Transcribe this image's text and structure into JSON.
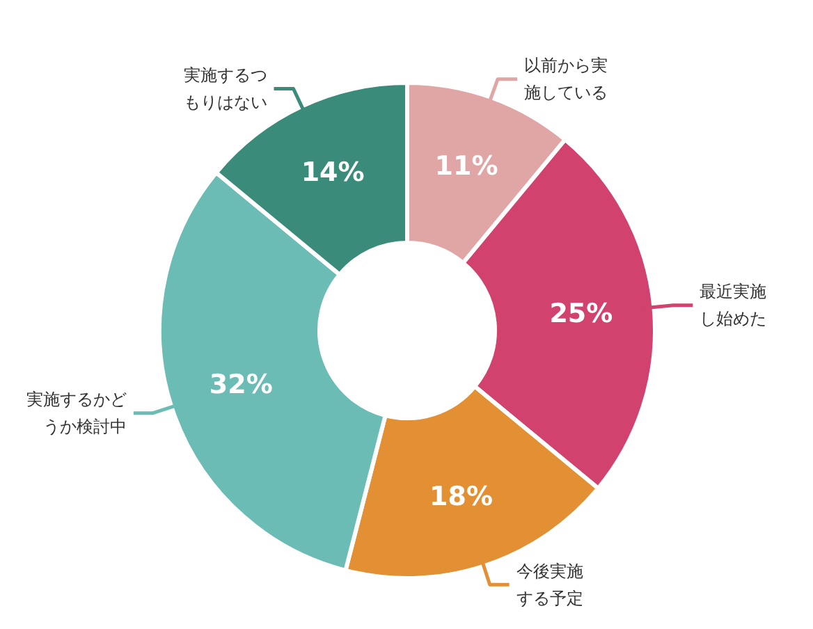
{
  "chart_data": {
    "type": "donut",
    "categories": [
      "以前から実施している",
      "最近実施し始めた",
      "今後実施する予定",
      "実施するかどうか検討中",
      "実施するつもりはない"
    ],
    "values": [
      11,
      25,
      18,
      32,
      14
    ],
    "colors": [
      "#e0a5a5",
      "#d2426e",
      "#e39035",
      "#6bbcb5",
      "#3a8b7a"
    ],
    "value_labels": [
      "11%",
      "25%",
      "18%",
      "32%",
      "14%"
    ]
  }
}
